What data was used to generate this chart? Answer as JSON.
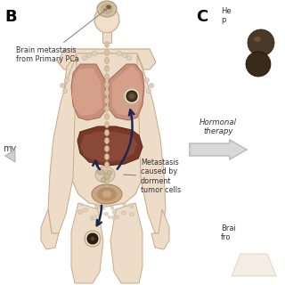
{
  "bg_color": "#ffffff",
  "panel_B_label": "B",
  "panel_C_label": "C",
  "brain_meta_label": "Brain metastasis\nfrom Primary PCa",
  "meta_caused_label": "Metastasis\ncaused by\ndorment\ntumor cells",
  "hormonal_label": "Hormonal\ntherapy",
  "brain_from_label": "Brai\nfro",
  "he_p_label": "He\np",
  "my_label": "my",
  "body_skin_color": "#eddcc8",
  "body_outline_color": "#c8aa88",
  "shoulder_color": "#e0c8b0",
  "lung_color": "#c8907a",
  "lung_light_color": "#d4a898",
  "liver_color": "#7a3828",
  "liver_light_color": "#9a5040",
  "prostate_color": "#c8a882",
  "prostate_inner_color": "#b89068",
  "lymph_color": "#ddd0b8",
  "lymph_inner_color": "#c8ba98",
  "tumor_color": "#4a3020",
  "tumor_ring_color": "#e8e0d0",
  "spine_color": "#d8c0a0",
  "bone_scatter_color": "#ddd0b8",
  "arrow_dark": "#1c2850",
  "arrow_hormone": "#c8c8c8",
  "cell_color1": "#4a3830",
  "cell_color2": "#383020",
  "label_color": "#333333",
  "line_color": "#888888",
  "left_arrow_color": "#c0c0c0"
}
